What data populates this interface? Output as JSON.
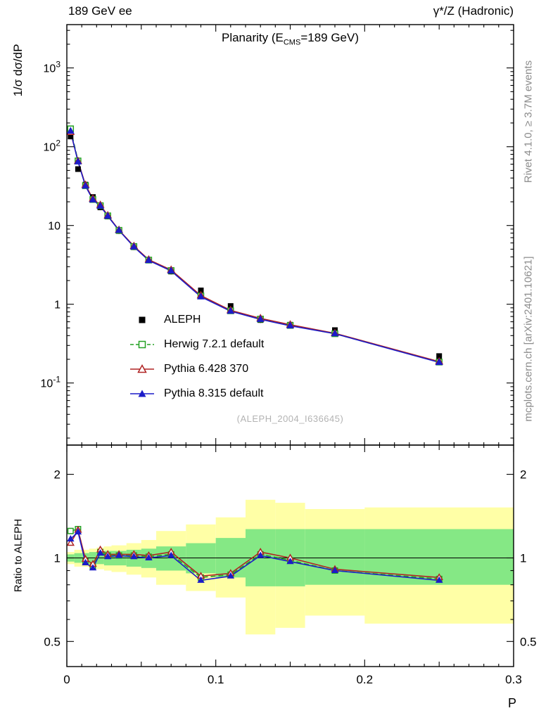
{
  "header": {
    "left": "189 GeV ee",
    "right": "γ*/Z (Hadronic)"
  },
  "title": {
    "prefix": "Planarity (E",
    "sub": "CMS",
    "suffix": "=189 GeV)"
  },
  "side_notes": {
    "rivet": "Rivet 4.1.0, ≥ 3.7M events",
    "mcplots": "mcplots.cern.ch [arXiv:2401.10621]"
  },
  "watermark": "(ALEPH_2004_I636645)",
  "colors": {
    "aleph": "#000000",
    "herwig": "#23a123",
    "pythia6": "#b02323",
    "pythia8": "#1c1cc8",
    "band_green": "#85e885",
    "band_yellow": "#ffffa6",
    "frame": "#000000",
    "note_gray": "#8c8c8c"
  },
  "chart_data": {
    "type": "line",
    "title": "Planarity (E_CMS=189 GeV)",
    "xlabel": "P",
    "ylabel_main": "1/σ  dσ/dP",
    "ylabel_ratio": "Ratio to ALEPH",
    "x_axis": {
      "min": 0,
      "max": 0.3,
      "major_ticks": [
        0,
        0.1,
        0.2,
        0.3
      ],
      "tick_labels": [
        "0",
        "0.1",
        "0.2",
        "0.3"
      ]
    },
    "y_axis_main": {
      "scale": "log",
      "min": 0.0163,
      "max": 3550,
      "major_ticks": [
        0.1,
        1,
        10,
        100,
        1000
      ],
      "tick_labels": [
        "10^-1",
        "1",
        "10",
        "10^2",
        "10^3"
      ]
    },
    "y_axis_ratio": {
      "scale": "log",
      "min": 0.406,
      "max": 2.55,
      "major_ticks": [
        0.5,
        1,
        2
      ],
      "tick_labels": [
        "0.5",
        "1",
        "2"
      ],
      "minor_ticks": [
        0.6,
        0.7,
        0.8,
        0.9
      ]
    },
    "x": [
      0.0025,
      0.0075,
      0.0125,
      0.0175,
      0.0225,
      0.0275,
      0.035,
      0.045,
      0.055,
      0.07,
      0.09,
      0.11,
      0.13,
      0.15,
      0.18,
      0.25
    ],
    "bin_edges": [
      0,
      0.005,
      0.01,
      0.015,
      0.02,
      0.025,
      0.03,
      0.04,
      0.05,
      0.06,
      0.08,
      0.1,
      0.12,
      0.14,
      0.16,
      0.2,
      0.3
    ],
    "series": [
      {
        "label": "ALEPH",
        "type": "data",
        "marker": "square-filled",
        "color_key": "aleph",
        "values": [
          135,
          52,
          33,
          23,
          17,
          13,
          8.5,
          5.3,
          3.6,
          2.6,
          1.5,
          0.95,
          0.63,
          0.55,
          0.47,
          0.22
        ]
      },
      {
        "label": "Herwig 7.2.1 default",
        "type": "mc",
        "marker": "square-open",
        "line": "dashed",
        "color_key": "herwig",
        "ratio_to_aleph": [
          1.25,
          1.27,
          0.97,
          0.93,
          1.05,
          1.02,
          1.02,
          1.02,
          1.01,
          1.03,
          0.85,
          0.87,
          1.03,
          0.98,
          0.9,
          0.84
        ]
      },
      {
        "label": "Pythia 6.428 370",
        "type": "mc",
        "marker": "triangle-open",
        "line": "solid",
        "color_key": "pythia6",
        "ratio_to_aleph": [
          1.13,
          1.26,
          0.99,
          0.95,
          1.07,
          1.03,
          1.03,
          1.03,
          1.02,
          1.05,
          0.86,
          0.88,
          1.05,
          1.0,
          0.91,
          0.85
        ]
      },
      {
        "label": "Pythia 8.315 default",
        "type": "mc",
        "marker": "triangle-filled",
        "line": "solid",
        "color_key": "pythia8",
        "ratio_to_aleph": [
          1.17,
          1.24,
          0.96,
          0.92,
          1.04,
          1.01,
          1.02,
          1.01,
          1.0,
          1.02,
          0.83,
          0.86,
          1.02,
          0.97,
          0.9,
          0.83
        ]
      }
    ],
    "ratio_bands": {
      "edges": [
        0,
        0.005,
        0.01,
        0.015,
        0.02,
        0.025,
        0.03,
        0.04,
        0.05,
        0.06,
        0.08,
        0.1,
        0.12,
        0.14,
        0.16,
        0.2,
        0.3
      ],
      "green_lo": [
        0.97,
        0.96,
        0.96,
        0.95,
        0.95,
        0.94,
        0.94,
        0.93,
        0.92,
        0.9,
        0.88,
        0.85,
        0.79,
        0.79,
        0.8,
        0.8
      ],
      "green_hi": [
        1.03,
        1.04,
        1.04,
        1.05,
        1.05,
        1.06,
        1.06,
        1.07,
        1.08,
        1.1,
        1.13,
        1.18,
        1.27,
        1.27,
        1.27,
        1.27
      ],
      "yellow_lo": [
        0.95,
        0.93,
        0.93,
        0.92,
        0.91,
        0.9,
        0.89,
        0.87,
        0.85,
        0.8,
        0.76,
        0.72,
        0.53,
        0.56,
        0.62,
        0.58
      ],
      "yellow_hi": [
        1.05,
        1.07,
        1.07,
        1.08,
        1.09,
        1.1,
        1.11,
        1.13,
        1.16,
        1.25,
        1.32,
        1.4,
        1.62,
        1.58,
        1.5,
        1.52
      ]
    },
    "reference_line": 1,
    "legend_position": "inside-left-middle",
    "grid": false
  }
}
